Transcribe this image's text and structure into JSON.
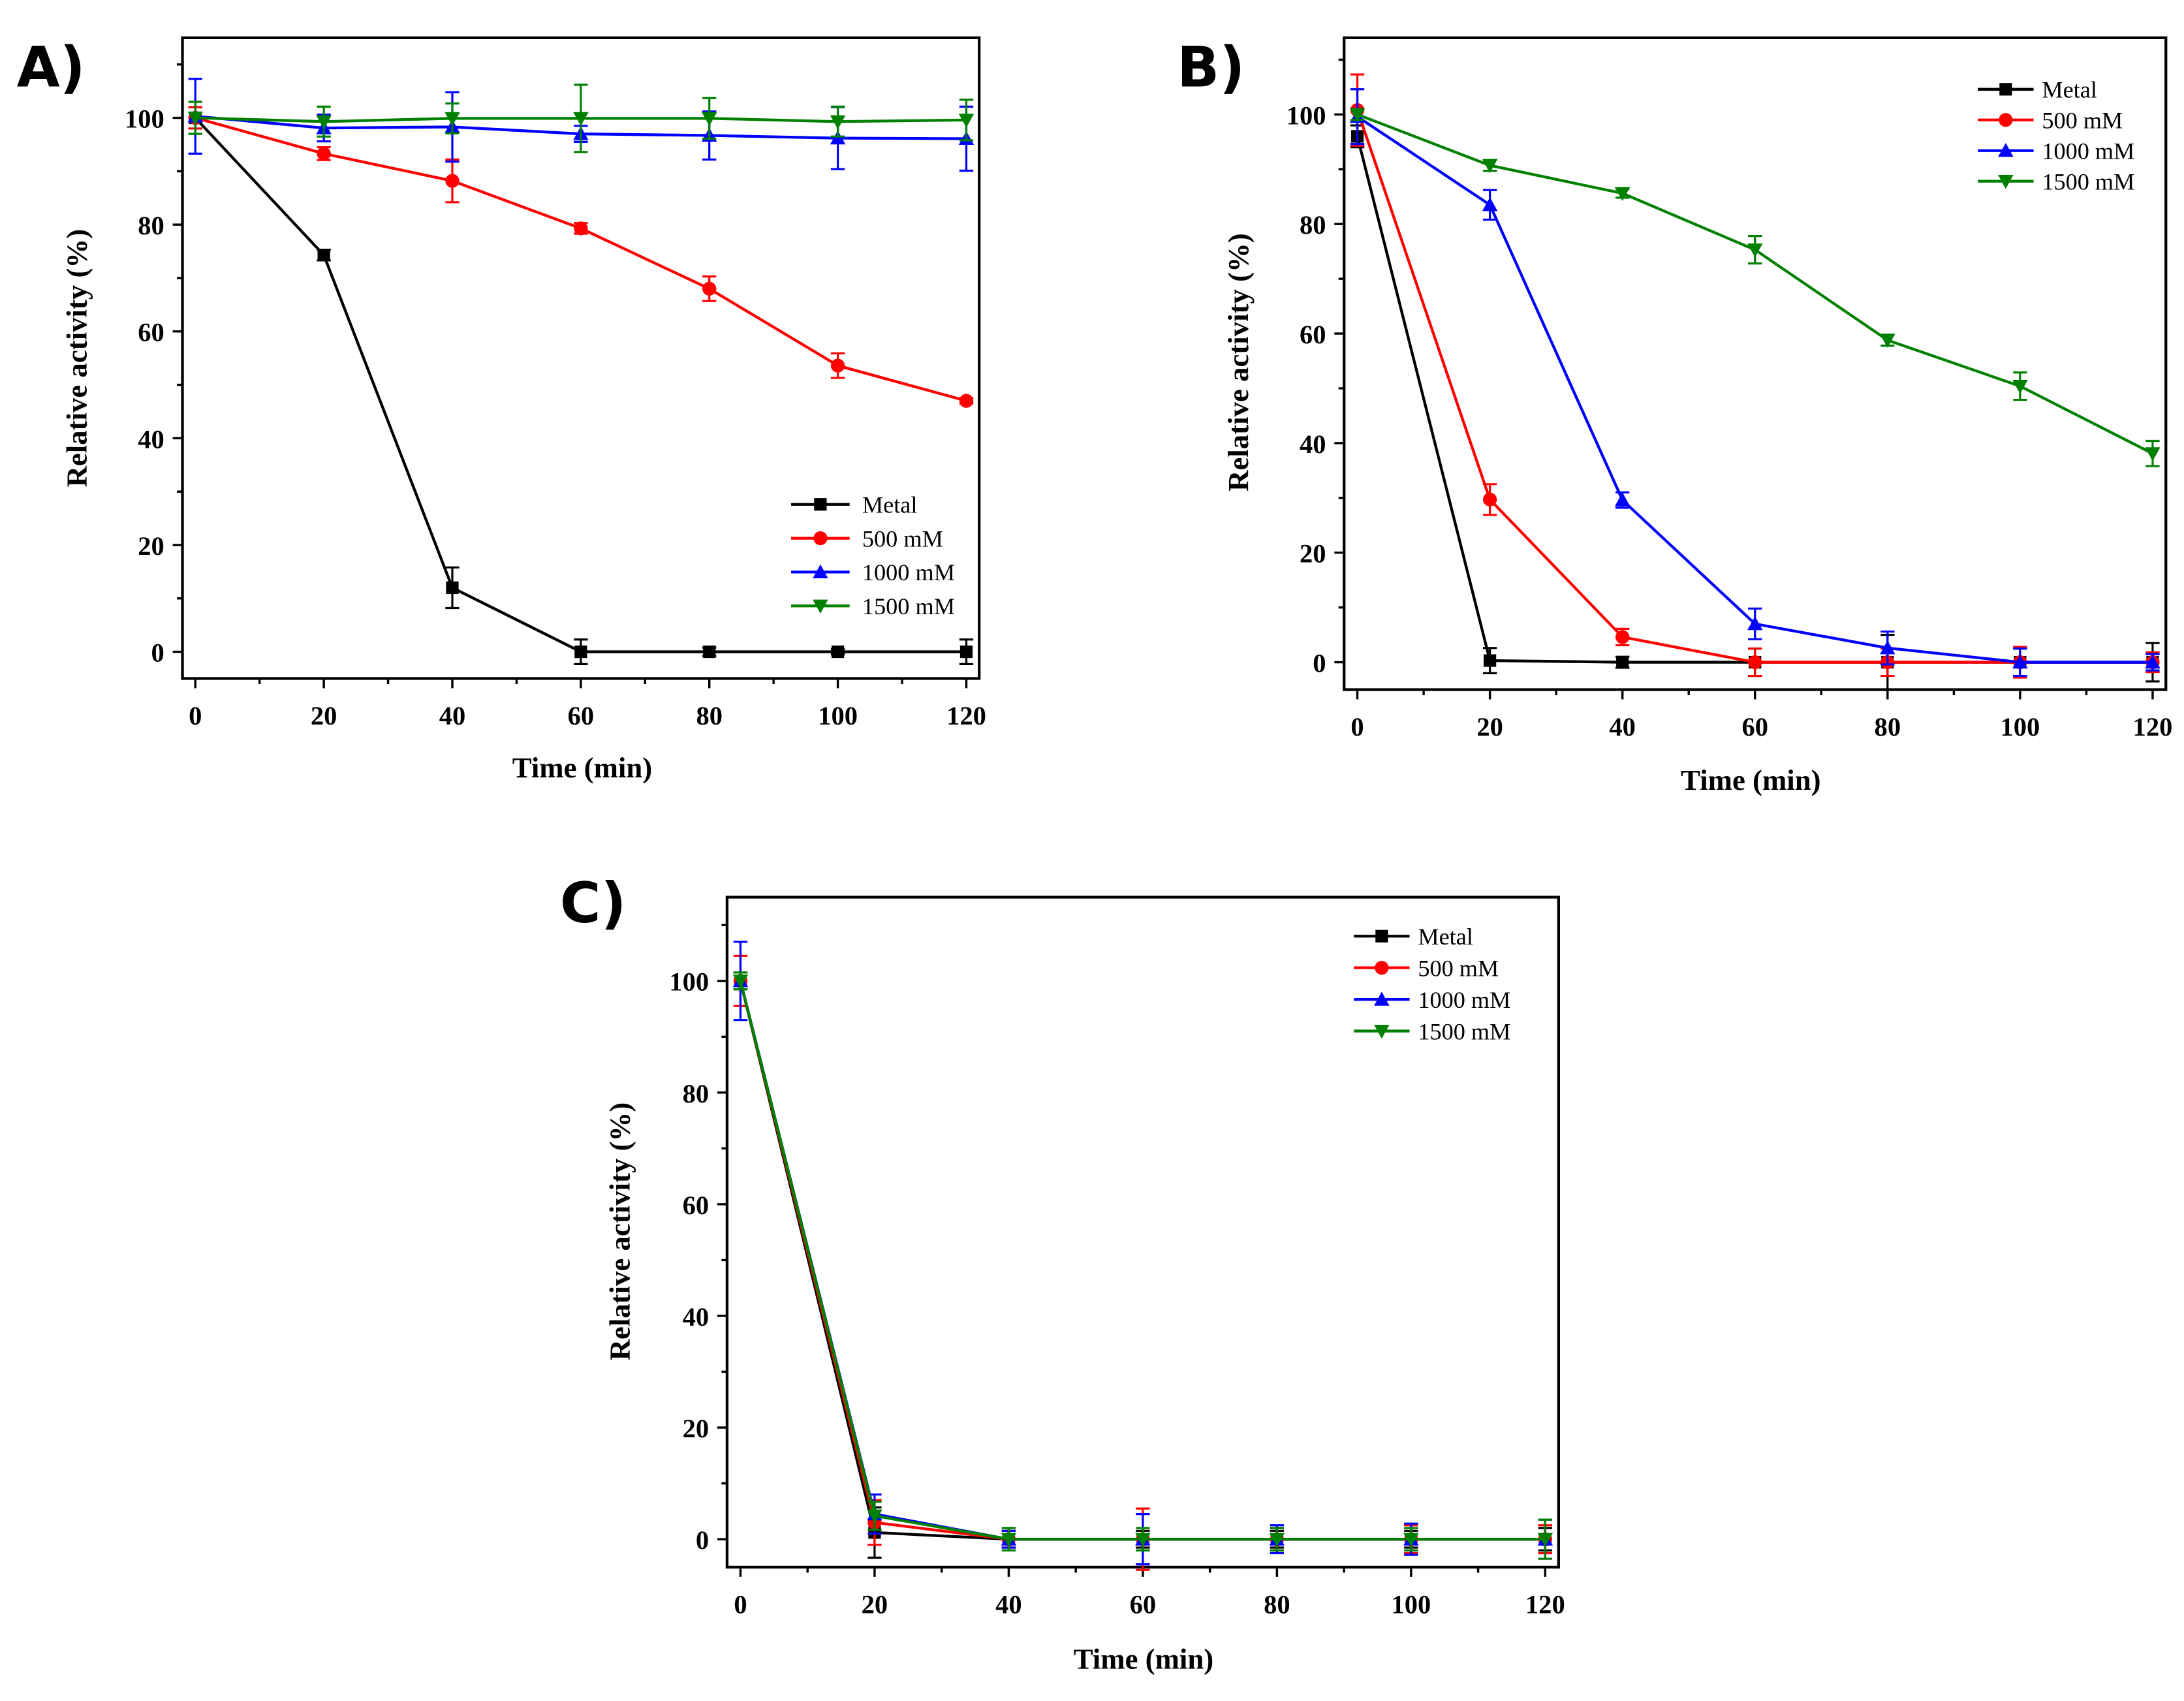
{
  "chart_data": [
    {
      "type": "line",
      "panel_label": "A)",
      "xlabel": "Time (min)",
      "ylabel": "Relative activity (%)",
      "xlim": [
        -2,
        122
      ],
      "ylim": [
        -5,
        115
      ],
      "xticks": [
        0,
        20,
        40,
        60,
        80,
        100,
        120
      ],
      "xtick_labels": [
        "0",
        "20",
        "40",
        "60",
        "80",
        "100",
        "120"
      ],
      "yticks": [
        0,
        20,
        40,
        60,
        80,
        100
      ],
      "ytick_labels": [
        "0",
        "20",
        "40",
        "60",
        "80",
        "100"
      ],
      "legend_position": "bottom-right",
      "x": [
        0,
        20,
        40,
        60,
        80,
        100,
        120
      ],
      "series": [
        {
          "name": "Metal",
          "color": "#000000",
          "marker": "square",
          "values": [
            100,
            74.3,
            12,
            0,
            0,
            0,
            0
          ],
          "errors": [
            2,
            1,
            3.8,
            2.3,
            0.8,
            0.5,
            2.3
          ]
        },
        {
          "name": "500 mM",
          "color": "#ff0000",
          "marker": "circle",
          "values": [
            100,
            93.3,
            88.2,
            79.3,
            68,
            53.6,
            47
          ],
          "errors": [
            2,
            1.2,
            4,
            1,
            2.3,
            2.3,
            0.5
          ]
        },
        {
          "name": "1000 mM",
          "color": "#0000ff",
          "marker": "triangle-up",
          "values": [
            100.3,
            98.1,
            98.3,
            97,
            96.7,
            96.2,
            96.1
          ],
          "errors": [
            7,
            2.5,
            6.5,
            1.5,
            4.5,
            5.8,
            6
          ]
        },
        {
          "name": "1500 mM",
          "color": "#008000",
          "marker": "triangle-down",
          "values": [
            100,
            99.3,
            99.9,
            99.9,
            99.9,
            99.3,
            99.6
          ],
          "errors": [
            3,
            2.8,
            2.8,
            6.3,
            3.8,
            2.8,
            3.8
          ]
        }
      ]
    },
    {
      "type": "line",
      "panel_label": "B)",
      "xlabel": "Time (min)",
      "ylabel": "Relative activity (%)",
      "xlim": [
        -2,
        122
      ],
      "ylim": [
        -5,
        114
      ],
      "xticks": [
        0,
        20,
        40,
        60,
        80,
        100,
        120
      ],
      "xtick_labels": [
        "0",
        "20",
        "40",
        "60",
        "80",
        "100",
        "120"
      ],
      "yticks": [
        0,
        20,
        40,
        60,
        80,
        100
      ],
      "ytick_labels": [
        "0",
        "20",
        "40",
        "60",
        "80",
        "100"
      ],
      "legend_position": "top-right",
      "x": [
        0,
        20,
        40,
        60,
        80,
        100,
        120
      ],
      "series": [
        {
          "name": "Metal",
          "color": "#000000",
          "marker": "square",
          "values": [
            96,
            0.3,
            0,
            0,
            0,
            0,
            0
          ],
          "errors": [
            2,
            2.3,
            1,
            2.5,
            5,
            2.5,
            3.5
          ]
        },
        {
          "name": "500 mM",
          "color": "#ff0000",
          "marker": "circle",
          "values": [
            100.8,
            29.7,
            4.6,
            0,
            0,
            0,
            0
          ],
          "errors": [
            6.5,
            2.8,
            1.5,
            2.5,
            2.5,
            2.8,
            1.8
          ]
        },
        {
          "name": "1000 mM",
          "color": "#0000ff",
          "marker": "triangle-up",
          "values": [
            99.6,
            83.5,
            29.6,
            7,
            2.6,
            0,
            0
          ],
          "errors": [
            5,
            2.7,
            1.4,
            2.8,
            3,
            2.5,
            1.5
          ]
        },
        {
          "name": "1500 mM",
          "color": "#008000",
          "marker": "triangle-down",
          "values": [
            100,
            90.7,
            85.6,
            75.3,
            58.8,
            50.4,
            38.1
          ],
          "errors": [
            1,
            1,
            0.8,
            2.5,
            1,
            2.5,
            2.3
          ]
        }
      ]
    },
    {
      "type": "line",
      "panel_label": "C)",
      "xlabel": "Time (min)",
      "ylabel": "Relative activity (%)",
      "xlim": [
        -2,
        122
      ],
      "ylim": [
        -5,
        115
      ],
      "xticks": [
        0,
        20,
        40,
        60,
        80,
        100,
        120
      ],
      "xtick_labels": [
        "0",
        "20",
        "40",
        "60",
        "80",
        "100",
        "120"
      ],
      "yticks": [
        0,
        20,
        40,
        60,
        80,
        100
      ],
      "ytick_labels": [
        "0",
        "20",
        "40",
        "60",
        "80",
        "100"
      ],
      "legend_position": "top-right",
      "x": [
        0,
        20,
        40,
        60,
        80,
        100,
        120
      ],
      "series": [
        {
          "name": "Metal",
          "color": "#000000",
          "marker": "square",
          "values": [
            100,
            1.2,
            0,
            0,
            0,
            0,
            0
          ],
          "errors": [
            1.5,
            4.5,
            1.5,
            1.5,
            1.5,
            1.5,
            2
          ]
        },
        {
          "name": "500 mM",
          "color": "#ff0000",
          "marker": "circle",
          "values": [
            100,
            3,
            0,
            0,
            0,
            0,
            0
          ],
          "errors": [
            4.5,
            4,
            1.5,
            5.5,
            2,
            2.5,
            2.5
          ]
        },
        {
          "name": "1000 mM",
          "color": "#0000ff",
          "marker": "triangle-up",
          "values": [
            100,
            4.5,
            0,
            0,
            0,
            0,
            0
          ],
          "errors": [
            7,
            3.5,
            1.5,
            4.5,
            2.5,
            2.8,
            3.5
          ]
        },
        {
          "name": "1500 mM",
          "color": "#008000",
          "marker": "triangle-down",
          "values": [
            100,
            4.2,
            0,
            0,
            0,
            0,
            0
          ],
          "errors": [
            1.5,
            2.5,
            2,
            2,
            2,
            2,
            3.5
          ]
        }
      ]
    }
  ]
}
